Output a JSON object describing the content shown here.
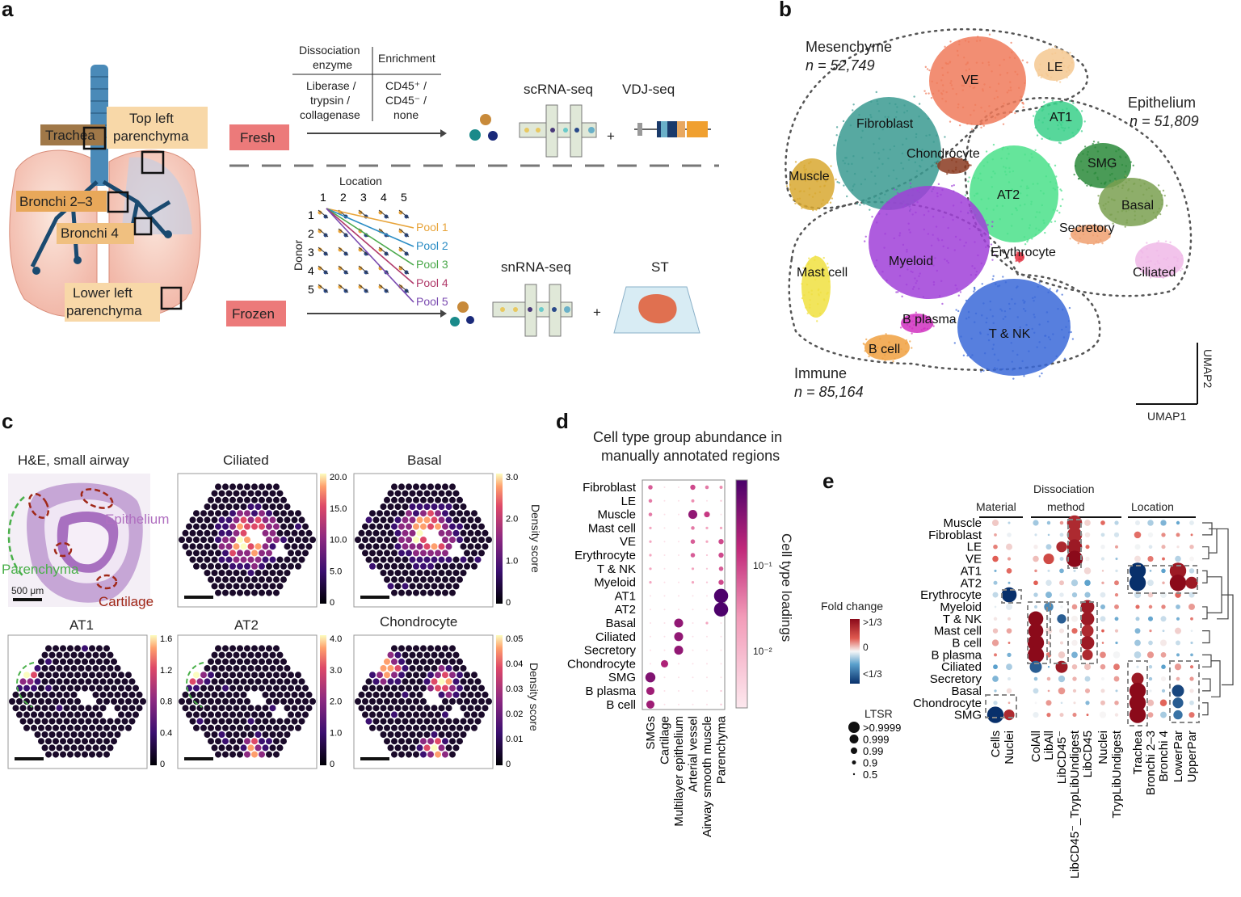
{
  "panels": {
    "a": "a",
    "b": "b",
    "c": "c",
    "d": "d",
    "e": "e"
  },
  "panel_a": {
    "anatomy_labels": {
      "trachea": "Trachea",
      "top_left": "Top left",
      "parenchyma": "parenchyma",
      "bronchi23": "Bronchi 2–3",
      "bronchi4": "Bronchi 4",
      "lower_left": "Lower left",
      "lower_parenchyma": "parenchyma"
    },
    "table": {
      "col1_head1": "Dissociation",
      "col1_head2": "enzyme",
      "col2_head": "Enrichment",
      "col1_v1": "Liberase /",
      "col1_v2": "trypsin /",
      "col1_v3": "collagenase",
      "col2_v1": "CD45⁺ /",
      "col2_v2": "CD45⁻ /",
      "col2_v3": "none"
    },
    "fresh": "Fresh",
    "frozen": "Frozen",
    "scrna": "scRNA-seq",
    "vdj": "VDJ-seq",
    "snrna": "snRNA-seq",
    "st": "ST",
    "plus": "+",
    "location": "Location",
    "donor": "Donor",
    "loc_nums": [
      "1",
      "2",
      "3",
      "4",
      "5"
    ],
    "donor_nums": [
      "1",
      "2",
      "3",
      "4",
      "5"
    ],
    "pools": [
      "Pool 1",
      "Pool 2",
      "Pool 3",
      "Pool 4",
      "Pool 5"
    ],
    "pool_colors": [
      "#e8a43a",
      "#2a8cc4",
      "#4aa84a",
      "#b03a6a",
      "#7a4ab0"
    ]
  },
  "panel_b": {
    "mesenchyme": "Mesenchyme",
    "mes_n": "n = 52,749",
    "epithelium": "Epithelium",
    "epi_n": "n = 51,809",
    "immune": "Immune",
    "imm_n": "n = 85,164",
    "umap1": "UMAP1",
    "umap2": "UMAP2",
    "clusters": [
      {
        "name": "VE",
        "color": "#f07a5a"
      },
      {
        "name": "LE",
        "color": "#f5c890"
      },
      {
        "name": "Fibroblast",
        "color": "#3a9a90"
      },
      {
        "name": "Chondrocyte",
        "color": "#8a3a20"
      },
      {
        "name": "Muscle",
        "color": "#d8a830"
      },
      {
        "name": "AT1",
        "color": "#3ad08a"
      },
      {
        "name": "AT2",
        "color": "#4ae08a"
      },
      {
        "name": "SMG",
        "color": "#2a8a3a"
      },
      {
        "name": "Basal",
        "color": "#7aa050"
      },
      {
        "name": "Secretory",
        "color": "#f0a070"
      },
      {
        "name": "Erythrocyte",
        "color": "#e03040"
      },
      {
        "name": "Ciliated",
        "color": "#f0b8e8"
      },
      {
        "name": "Myeloid",
        "color": "#a040d8"
      },
      {
        "name": "Mast cell",
        "color": "#f0e040"
      },
      {
        "name": "B plasma",
        "color": "#d030c0"
      },
      {
        "name": "T & NK",
        "color": "#3a68d8"
      },
      {
        "name": "B cell",
        "color": "#f0a040"
      }
    ]
  },
  "panel_c": {
    "titles": [
      "H&E, small airway",
      "Ciliated",
      "Basal",
      "AT1",
      "AT2",
      "Chondrocyte"
    ],
    "he_labels": {
      "epithelium": "Epithelium",
      "parenchyma": "Parenchyma",
      "cartilage": "Cartilage",
      "scale": "500 μm"
    },
    "density_score": "Density score",
    "colorbars": {
      "ciliated": [
        "20.0",
        "15.0",
        "10.0",
        "5.0",
        "0"
      ],
      "basal": [
        "3.0",
        "2.0",
        "1.0",
        "0"
      ],
      "at1": [
        "1.6",
        "1.2",
        "0.8",
        "0.4",
        "0"
      ],
      "at2": [
        "4.0",
        "3.0",
        "2.0",
        "1.0",
        "0"
      ],
      "chondrocyte": [
        "0.05",
        "0.04",
        "0.03",
        "0.02",
        "0.01",
        "0"
      ]
    }
  },
  "panel_d": {
    "title1": "Cell type group abundance in",
    "title2": "manually annotated regions",
    "colorbar_label": "Cell type loadings",
    "colorbar_ticks": [
      "10⁻¹",
      "10⁻²"
    ]
  },
  "chart_data": [
    {
      "type": "scatter",
      "title": "Cell type group abundance in manually annotated regions",
      "rows": [
        "Fibroblast",
        "LE",
        "Muscle",
        "Mast cell",
        "VE",
        "Erythrocyte",
        "T & NK",
        "Myeloid",
        "AT1",
        "AT2",
        "Basal",
        "Ciliated",
        "Secretory",
        "Chondrocyte",
        "SMG",
        "B plasma",
        "B cell"
      ],
      "columns": [
        "SMGs",
        "Cartilage",
        "Multilayer epithelium",
        "Arterial vessel",
        "Airway smooth muscle",
        "Parenchyma"
      ],
      "values": [
        [
          0.03,
          0.003,
          0.003,
          0.04,
          0.02,
          0.015
        ],
        [
          0.02,
          0.003,
          0.003,
          0.015,
          0.003,
          0.005
        ],
        [
          0.02,
          0.003,
          0.003,
          0.12,
          0.05,
          0.003
        ],
        [
          0.01,
          0.003,
          0.003,
          0.02,
          0.01,
          0.01
        ],
        [
          0.01,
          0.003,
          0.003,
          0.03,
          0.01,
          0.04
        ],
        [
          0.01,
          0.003,
          0.003,
          0.03,
          0.005,
          0.04
        ],
        [
          0.01,
          0.003,
          0.003,
          0.01,
          0.005,
          0.03
        ],
        [
          0.01,
          0.003,
          0.003,
          0.01,
          0.005,
          0.04
        ],
        [
          0.003,
          0.003,
          0.003,
          0.003,
          0.003,
          0.3
        ],
        [
          0.003,
          0.003,
          0.003,
          0.003,
          0.003,
          0.3
        ],
        [
          0.003,
          0.003,
          0.12,
          0.003,
          0.01,
          0.003
        ],
        [
          0.003,
          0.003,
          0.12,
          0.003,
          0.003,
          0.003
        ],
        [
          0.003,
          0.003,
          0.12,
          0.003,
          0.003,
          0.003
        ],
        [
          0.003,
          0.08,
          0.003,
          0.003,
          0.003,
          0.003
        ],
        [
          0.15,
          0.003,
          0.003,
          0.003,
          0.003,
          0.003
        ],
        [
          0.1,
          0.003,
          0.003,
          0.003,
          0.003,
          0.005
        ],
        [
          0.1,
          0.003,
          0.003,
          0.003,
          0.003,
          0.005
        ]
      ],
      "ylabel": "Cell type loadings"
    },
    {
      "type": "scatter",
      "headers": {
        "material": "Material",
        "dissociation1": "Dissociation",
        "dissociation2": "method",
        "location": "Location"
      },
      "rows": [
        "Muscle",
        "Fibroblast",
        "LE",
        "VE",
        "AT1",
        "AT2",
        "Erythrocyte",
        "Myeloid",
        "T & NK",
        "Mast cell",
        "B cell",
        "B plasma",
        "Ciliated",
        "Secretory",
        "Basal",
        "Chondrocyte",
        "SMG"
      ],
      "columns": [
        "Cells",
        "Nuclei",
        "ColAll",
        "LibAll",
        "LibCD45⁻",
        "LibCD45⁻_TrypLibUndigest",
        "LibCD45",
        "Nuclei",
        "TrypLibUndigest",
        "Trachea",
        "Bronchi 2–3",
        "Bronchi 4",
        "LowerPar",
        "UpperPar"
      ],
      "legend": {
        "fold_change": "Fold change",
        "fc_ticks": [
          ">1/3",
          "0",
          "<1/3"
        ],
        "ltsr": "LTSR",
        "ltsr_ticks": [
          ">0.9999",
          "0.999",
          "0.99",
          "0.9",
          "0.5"
        ]
      }
    }
  ]
}
